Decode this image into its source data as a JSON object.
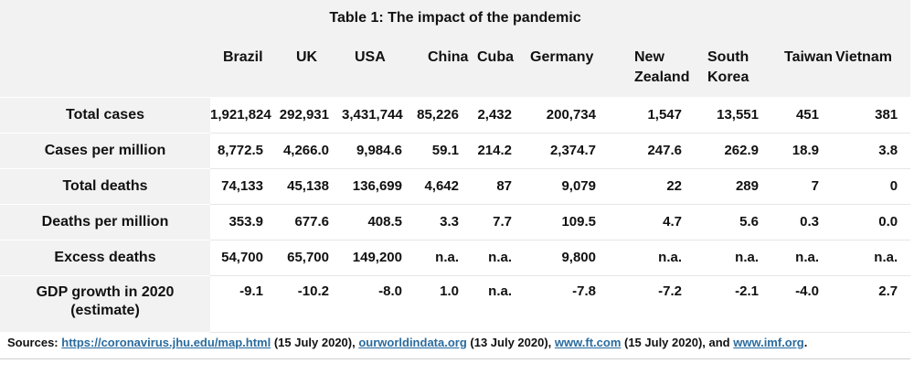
{
  "title": "Table 1: The impact of the pandemic",
  "columns": [
    "Brazil",
    "UK",
    "USA",
    "China",
    "Cuba",
    "Germany",
    "New Zealand",
    "South Korea",
    "Taiwan",
    "Vietnam"
  ],
  "rows": [
    {
      "label": "Total cases",
      "values": [
        "1,921,824",
        "292,931",
        "3,431,744",
        "85,226",
        "2,432",
        "200,734",
        "1,547",
        "13,551",
        "451",
        "381"
      ]
    },
    {
      "label": "Cases per million",
      "values": [
        "8,772.5",
        "4,266.0",
        "9,984.6",
        "59.1",
        "214.2",
        "2,374.7",
        "247.6",
        "262.9",
        "18.9",
        "3.8"
      ]
    },
    {
      "label": "Total deaths",
      "values": [
        "74,133",
        "45,138",
        "136,699",
        "4,642",
        "87",
        "9,079",
        "22",
        "289",
        "7",
        "0"
      ]
    },
    {
      "label": "Deaths per million",
      "values": [
        "353.9",
        "677.6",
        "408.5",
        "3.3",
        "7.7",
        "109.5",
        "4.7",
        "5.6",
        "0.3",
        "0.0"
      ]
    },
    {
      "label": "Excess deaths",
      "values": [
        "54,700",
        "65,700",
        "149,200",
        "n.a.",
        "n.a.",
        "9,800",
        "n.a.",
        "n.a.",
        "n.a.",
        "n.a."
      ]
    },
    {
      "label": "GDP growth in 2020 (estimate)",
      "values": [
        "-9.1",
        "-10.2",
        "-8.0",
        "1.0",
        "n.a.",
        "-7.8",
        "-7.2",
        "-2.1",
        "-4.0",
        "2.7"
      ]
    }
  ],
  "sources": {
    "prefix": "Sources: ",
    "link1": "https://coronavirus.jhu.edu/map.html",
    "text1": " (15 July 2020), ",
    "link2": "ourworldindata.org",
    "text2": " (13 July 2020), ",
    "link3": "www.ft.com",
    "text3": " (15 July 2020), and ",
    "link4": "www.imf.org",
    "text4": "."
  }
}
